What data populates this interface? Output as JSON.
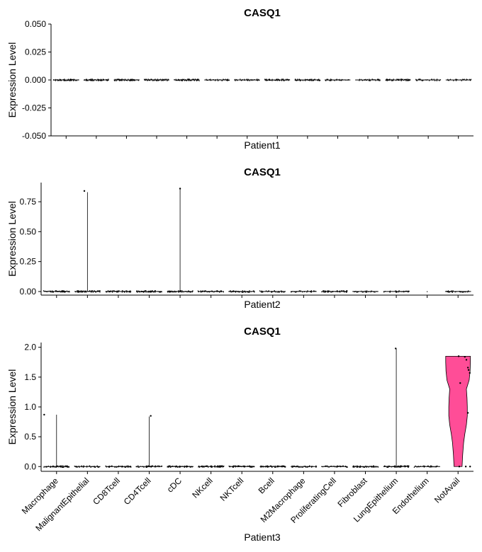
{
  "chart_data": [
    {
      "type": "violin",
      "title": "CASQ1",
      "ylabel": "Expression Level",
      "xlabel": "Patient1",
      "ylim": [
        -0.05,
        0.05
      ],
      "yticks": [
        "0.050",
        "0.025",
        "0.000",
        "-0.025",
        "-0.050"
      ],
      "ytick_values": [
        0.05,
        0.025,
        0.0,
        -0.025,
        -0.05
      ],
      "categories": [
        "Macrophage",
        "MalignantEpithelial",
        "CD8Tcell",
        "CD4Tcell",
        "cDC",
        "NKcell",
        "NKTcell",
        "Bcell",
        "M2Macrophage",
        "ProliferatingCell",
        "Fibroblast",
        "LungEpithelium",
        "Endothelium",
        "NotAvail"
      ],
      "show_category_labels": false,
      "violins": [
        {
          "category": "Macrophage",
          "max": 0,
          "points": [],
          "density": 1.0
        },
        {
          "category": "MalignantEpithelial",
          "max": 0,
          "points": [],
          "density": 1.0
        },
        {
          "category": "CD8Tcell",
          "max": 0,
          "points": [],
          "density": 1.0
        },
        {
          "category": "CD4Tcell",
          "max": 0,
          "points": [],
          "density": 1.0
        },
        {
          "category": "cDC",
          "max": 0,
          "points": [],
          "density": 1.0
        },
        {
          "category": "NKcell",
          "max": 0,
          "points": [],
          "density": 0.6
        },
        {
          "category": "NKTcell",
          "max": 0,
          "points": [],
          "density": 0.6
        },
        {
          "category": "Bcell",
          "max": 0,
          "points": [],
          "density": 1.0
        },
        {
          "category": "M2Macrophage",
          "max": 0,
          "points": [],
          "density": 1.0
        },
        {
          "category": "ProliferatingCell",
          "max": 0,
          "points": [],
          "density": 0.6
        },
        {
          "category": "Fibroblast",
          "max": 0,
          "points": [],
          "density": 0.6
        },
        {
          "category": "LungEpithelium",
          "max": 0,
          "points": [],
          "density": 1.0
        },
        {
          "category": "Endothelium",
          "max": 0,
          "points": [],
          "density": 0.5
        },
        {
          "category": "NotAvail",
          "max": 0,
          "points": [],
          "density": 0.5
        }
      ]
    },
    {
      "type": "violin",
      "title": "CASQ1",
      "ylabel": "Expression Level",
      "xlabel": "Patient2",
      "ylim": [
        -0.03,
        0.91
      ],
      "yticks": [
        "0.75",
        "0.50",
        "0.25",
        "0.00"
      ],
      "ytick_values": [
        0.75,
        0.5,
        0.25,
        0.0
      ],
      "categories": [
        "Macrophage",
        "MalignantEpithelial",
        "CD8Tcell",
        "CD4Tcell",
        "cDC",
        "NKcell",
        "NKTcell",
        "Bcell",
        "M2Macrophage",
        "ProliferatingCell",
        "Fibroblast",
        "LungEpithelium",
        "Endothelium",
        "NotAvail"
      ],
      "show_category_labels": false,
      "violins": [
        {
          "category": "Macrophage",
          "max": 0,
          "points": [],
          "density": 1.0
        },
        {
          "category": "MalignantEpithelial",
          "max": 0.83,
          "points": [
            {
              "y": 0.84,
              "dx": -0.1
            }
          ],
          "density": 1.0
        },
        {
          "category": "CD8Tcell",
          "max": 0,
          "points": [],
          "density": 0.8
        },
        {
          "category": "CD4Tcell",
          "max": 0,
          "points": [],
          "density": 1.0
        },
        {
          "category": "cDC",
          "max": 0.86,
          "points": [
            {
              "y": 0.86,
              "dx": 0.0
            }
          ],
          "density": 1.0
        },
        {
          "category": "NKcell",
          "max": 0,
          "points": [],
          "density": 0.8
        },
        {
          "category": "NKTcell",
          "max": 0,
          "points": [],
          "density": 0.8
        },
        {
          "category": "Bcell",
          "max": 0,
          "points": [],
          "density": 0.5
        },
        {
          "category": "M2Macrophage",
          "max": 0,
          "points": [],
          "density": 0.5
        },
        {
          "category": "ProliferatingCell",
          "max": 0,
          "points": [],
          "density": 0.8
        },
        {
          "category": "Fibroblast",
          "max": 0,
          "points": [],
          "density": 0.4
        },
        {
          "category": "LungEpithelium",
          "max": 0,
          "points": [],
          "density": 0.5
        },
        {
          "category": "Endothelium",
          "max": 0,
          "points": [],
          "density": 0.0,
          "single": true
        },
        {
          "category": "NotAvail",
          "max": 0,
          "points": [],
          "density": 0.5
        }
      ]
    },
    {
      "type": "violin",
      "title": "CASQ1",
      "ylabel": "Expression Level",
      "xlabel": "Patient3",
      "ylim": [
        -0.08,
        2.08
      ],
      "yticks": [
        "2.0",
        "1.5",
        "1.0",
        "0.5",
        "0.0"
      ],
      "ytick_values": [
        2.0,
        1.5,
        1.0,
        0.5,
        0.0
      ],
      "categories": [
        "Macrophage",
        "MalignantEpithelial",
        "CD8Tcell",
        "CD4Tcell",
        "cDC",
        "NKcell",
        "NKTcell",
        "Bcell",
        "M2Macrophage",
        "ProliferatingCell",
        "Fibroblast",
        "LungEpithelium",
        "Endothelium",
        "NotAvail"
      ],
      "show_category_labels": true,
      "violins": [
        {
          "category": "Macrophage",
          "max": 0.87,
          "points": [
            {
              "y": 0.87,
              "dx": -0.4
            }
          ],
          "density": 1.0
        },
        {
          "category": "MalignantEpithelial",
          "max": 0,
          "points": [],
          "density": 0.6
        },
        {
          "category": "CD8Tcell",
          "max": 0,
          "points": [],
          "density": 0.8
        },
        {
          "category": "CD4Tcell",
          "max": 0.84,
          "points": [
            {
              "y": 0.85,
              "dx": 0.05
            }
          ],
          "density": 0.8
        },
        {
          "category": "cDC",
          "max": 0,
          "points": [],
          "density": 1.0
        },
        {
          "category": "NKcell",
          "max": 0,
          "points": [],
          "density": 1.0
        },
        {
          "category": "NKTcell",
          "max": 0,
          "points": [],
          "density": 1.0
        },
        {
          "category": "Bcell",
          "max": 0,
          "points": [],
          "density": 1.0
        },
        {
          "category": "M2Macrophage",
          "max": 0,
          "points": [],
          "density": 0.6
        },
        {
          "category": "ProliferatingCell",
          "max": 0,
          "points": [],
          "density": 0.6
        },
        {
          "category": "Fibroblast",
          "max": 0,
          "points": [],
          "density": 0.8
        },
        {
          "category": "LungEpithelium",
          "max": 1.98,
          "points": [
            {
              "y": 1.98,
              "dx": -0.02
            }
          ],
          "density": 1.0
        },
        {
          "category": "Endothelium",
          "max": 0,
          "points": [],
          "density": 0.5
        },
        {
          "category": "NotAvail",
          "max": 1.85,
          "fill": "#ff4d97",
          "outline": [
            [
              0,
              0.13
            ],
            [
              0.2,
              0.15
            ],
            [
              0.4,
              0.18
            ],
            [
              0.55,
              0.22
            ],
            [
              0.7,
              0.27
            ],
            [
              0.85,
              0.3
            ],
            [
              1.0,
              0.3
            ],
            [
              1.15,
              0.29
            ],
            [
              1.3,
              0.27
            ],
            [
              1.45,
              0.36
            ],
            [
              1.6,
              0.39
            ],
            [
              1.75,
              0.4
            ],
            [
              1.85,
              0.4
            ]
          ],
          "points": [
            {
              "y": 1.85,
              "dx": 0.02
            },
            {
              "y": 1.84,
              "dx": 0.22
            },
            {
              "y": 1.79,
              "dx": 0.27
            },
            {
              "y": 1.66,
              "dx": 0.32
            },
            {
              "y": 1.62,
              "dx": 0.34
            },
            {
              "y": 1.57,
              "dx": 0.38
            },
            {
              "y": 1.4,
              "dx": 0.07
            },
            {
              "y": 0.9,
              "dx": 0.32
            },
            {
              "y": 0.0,
              "dx": 0.04
            },
            {
              "y": 0.0,
              "dx": 0.25
            },
            {
              "y": 0.0,
              "dx": 0.39
            }
          ],
          "density": 0.0
        }
      ]
    }
  ]
}
